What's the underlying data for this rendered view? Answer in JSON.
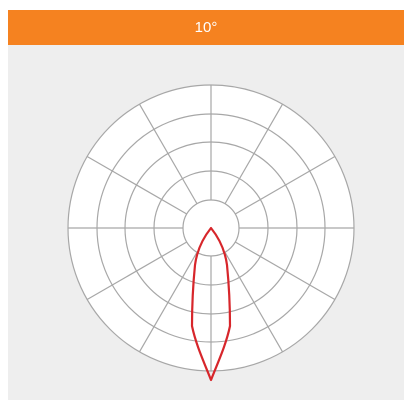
{
  "header": {
    "title": "10°"
  }
}
